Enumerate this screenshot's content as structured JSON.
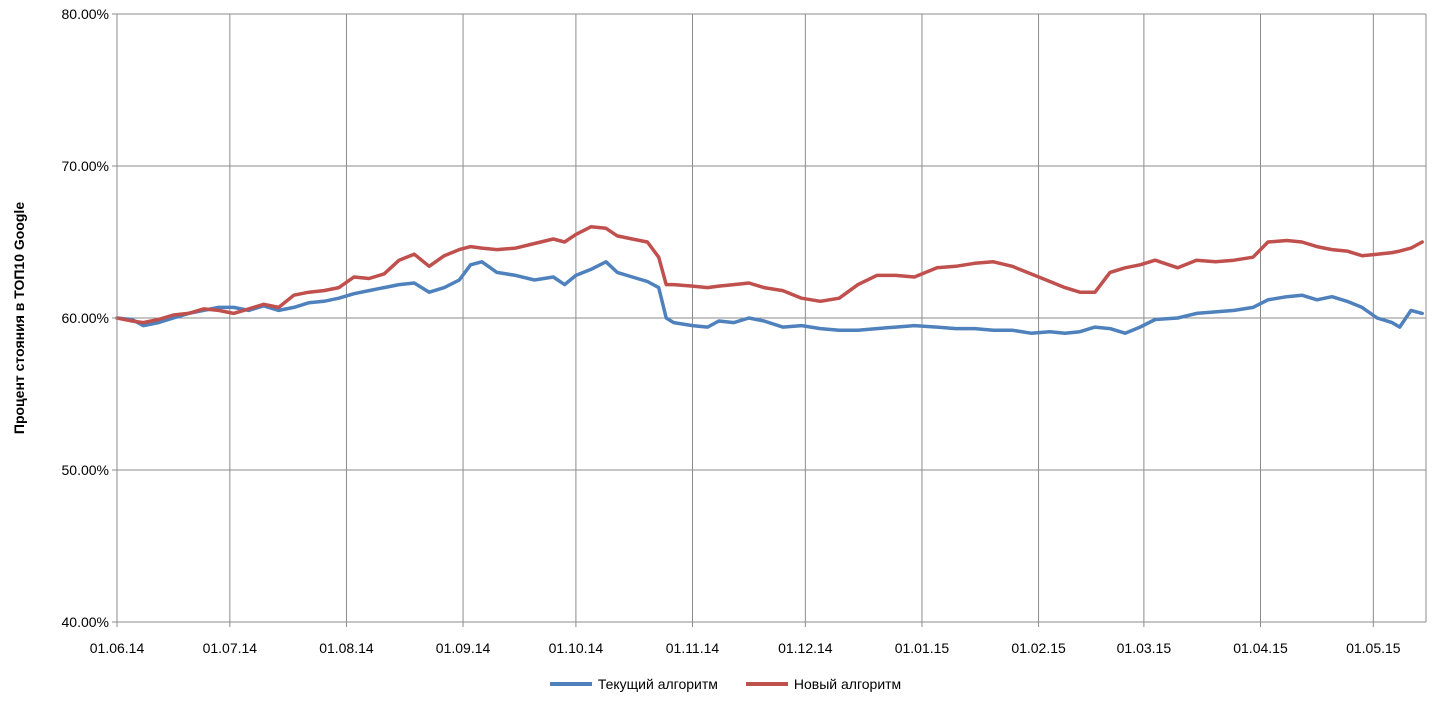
{
  "chart_data": {
    "type": "line",
    "title": "",
    "xlabel": "",
    "ylabel": "Процент стояния в ТОП10 Google",
    "ylim": [
      0.4,
      0.8
    ],
    "y_ticks": [
      "40.00%",
      "50.00%",
      "60.00%",
      "70.00%",
      "80.00%"
    ],
    "x_ticks": [
      "01.06.14",
      "01.07.14",
      "01.08.14",
      "01.09.14",
      "01.10.14",
      "01.11.14",
      "01.12.14",
      "01.01.15",
      "01.02.15",
      "01.03.15",
      "01.04.15",
      "01.05.15"
    ],
    "x_range": [
      "2014-06-01",
      "2015-05-15"
    ],
    "grid": true,
    "legend_position": "bottom",
    "series": [
      {
        "name": "Текущий алгоритм",
        "color": "#4f81bd",
        "points": [
          [
            "2014-06-01",
            0.6
          ],
          [
            "2014-06-05",
            0.599
          ],
          [
            "2014-06-08",
            0.595
          ],
          [
            "2014-06-12",
            0.597
          ],
          [
            "2014-06-16",
            0.6
          ],
          [
            "2014-06-20",
            0.603
          ],
          [
            "2014-06-24",
            0.605
          ],
          [
            "2014-06-28",
            0.607
          ],
          [
            "2014-07-02",
            0.607
          ],
          [
            "2014-07-06",
            0.605
          ],
          [
            "2014-07-10",
            0.608
          ],
          [
            "2014-07-14",
            0.605
          ],
          [
            "2014-07-18",
            0.607
          ],
          [
            "2014-07-22",
            0.61
          ],
          [
            "2014-07-26",
            0.611
          ],
          [
            "2014-07-30",
            0.613
          ],
          [
            "2014-08-03",
            0.616
          ],
          [
            "2014-08-07",
            0.618
          ],
          [
            "2014-08-11",
            0.62
          ],
          [
            "2014-08-15",
            0.622
          ],
          [
            "2014-08-19",
            0.623
          ],
          [
            "2014-08-23",
            0.617
          ],
          [
            "2014-08-27",
            0.62
          ],
          [
            "2014-08-31",
            0.625
          ],
          [
            "2014-09-03",
            0.635
          ],
          [
            "2014-09-06",
            0.637
          ],
          [
            "2014-09-10",
            0.63
          ],
          [
            "2014-09-15",
            0.628
          ],
          [
            "2014-09-20",
            0.625
          ],
          [
            "2014-09-25",
            0.627
          ],
          [
            "2014-09-28",
            0.622
          ],
          [
            "2014-10-01",
            0.628
          ],
          [
            "2014-10-05",
            0.632
          ],
          [
            "2014-10-09",
            0.637
          ],
          [
            "2014-10-12",
            0.63
          ],
          [
            "2014-10-16",
            0.627
          ],
          [
            "2014-10-20",
            0.624
          ],
          [
            "2014-10-23",
            0.62
          ],
          [
            "2014-10-25",
            0.6
          ],
          [
            "2014-10-27",
            0.597
          ],
          [
            "2014-11-01",
            0.595
          ],
          [
            "2014-11-05",
            0.594
          ],
          [
            "2014-11-08",
            0.598
          ],
          [
            "2014-11-12",
            0.597
          ],
          [
            "2014-11-16",
            0.6
          ],
          [
            "2014-11-20",
            0.598
          ],
          [
            "2014-11-25",
            0.594
          ],
          [
            "2014-11-30",
            0.595
          ],
          [
            "2014-12-05",
            0.593
          ],
          [
            "2014-12-10",
            0.592
          ],
          [
            "2014-12-15",
            0.592
          ],
          [
            "2014-12-20",
            0.593
          ],
          [
            "2014-12-25",
            0.594
          ],
          [
            "2014-12-30",
            0.595
          ],
          [
            "2015-01-05",
            0.594
          ],
          [
            "2015-01-10",
            0.593
          ],
          [
            "2015-01-15",
            0.593
          ],
          [
            "2015-01-20",
            0.592
          ],
          [
            "2015-01-25",
            0.592
          ],
          [
            "2015-01-30",
            0.59
          ],
          [
            "2015-02-04",
            0.591
          ],
          [
            "2015-02-08",
            0.59
          ],
          [
            "2015-02-12",
            0.591
          ],
          [
            "2015-02-16",
            0.594
          ],
          [
            "2015-02-20",
            0.593
          ],
          [
            "2015-02-24",
            0.59
          ],
          [
            "2015-02-28",
            0.594
          ],
          [
            "2015-03-04",
            0.599
          ],
          [
            "2015-03-10",
            0.6
          ],
          [
            "2015-03-15",
            0.603
          ],
          [
            "2015-03-20",
            0.604
          ],
          [
            "2015-03-25",
            0.605
          ],
          [
            "2015-03-30",
            0.607
          ],
          [
            "2015-04-03",
            0.612
          ],
          [
            "2015-04-08",
            0.614
          ],
          [
            "2015-04-12",
            0.615
          ],
          [
            "2015-04-16",
            0.612
          ],
          [
            "2015-04-20",
            0.614
          ],
          [
            "2015-04-24",
            0.611
          ],
          [
            "2015-04-28",
            0.607
          ],
          [
            "2015-05-02",
            0.6
          ],
          [
            "2015-05-06",
            0.597
          ],
          [
            "2015-05-08",
            0.594
          ],
          [
            "2015-05-11",
            0.605
          ],
          [
            "2015-05-14",
            0.603
          ]
        ]
      },
      {
        "name": "Новый алгоритм",
        "color": "#c0504d",
        "points": [
          [
            "2014-06-01",
            0.6
          ],
          [
            "2014-06-05",
            0.598
          ],
          [
            "2014-06-08",
            0.597
          ],
          [
            "2014-06-12",
            0.599
          ],
          [
            "2014-06-16",
            0.602
          ],
          [
            "2014-06-20",
            0.603
          ],
          [
            "2014-06-24",
            0.606
          ],
          [
            "2014-06-28",
            0.605
          ],
          [
            "2014-07-02",
            0.603
          ],
          [
            "2014-07-06",
            0.606
          ],
          [
            "2014-07-10",
            0.609
          ],
          [
            "2014-07-14",
            0.607
          ],
          [
            "2014-07-18",
            0.615
          ],
          [
            "2014-07-22",
            0.617
          ],
          [
            "2014-07-26",
            0.618
          ],
          [
            "2014-07-30",
            0.62
          ],
          [
            "2014-08-03",
            0.627
          ],
          [
            "2014-08-07",
            0.626
          ],
          [
            "2014-08-11",
            0.629
          ],
          [
            "2014-08-15",
            0.638
          ],
          [
            "2014-08-19",
            0.642
          ],
          [
            "2014-08-23",
            0.634
          ],
          [
            "2014-08-27",
            0.641
          ],
          [
            "2014-08-31",
            0.645
          ],
          [
            "2014-09-03",
            0.647
          ],
          [
            "2014-09-06",
            0.646
          ],
          [
            "2014-09-10",
            0.645
          ],
          [
            "2014-09-15",
            0.646
          ],
          [
            "2014-09-20",
            0.649
          ],
          [
            "2014-09-25",
            0.652
          ],
          [
            "2014-09-28",
            0.65
          ],
          [
            "2014-10-01",
            0.655
          ],
          [
            "2014-10-05",
            0.66
          ],
          [
            "2014-10-09",
            0.659
          ],
          [
            "2014-10-12",
            0.654
          ],
          [
            "2014-10-16",
            0.652
          ],
          [
            "2014-10-20",
            0.65
          ],
          [
            "2014-10-23",
            0.64
          ],
          [
            "2014-10-25",
            0.622
          ],
          [
            "2014-10-27",
            0.622
          ],
          [
            "2014-11-01",
            0.621
          ],
          [
            "2014-11-05",
            0.62
          ],
          [
            "2014-11-08",
            0.621
          ],
          [
            "2014-11-12",
            0.622
          ],
          [
            "2014-11-16",
            0.623
          ],
          [
            "2014-11-20",
            0.62
          ],
          [
            "2014-11-25",
            0.618
          ],
          [
            "2014-11-30",
            0.613
          ],
          [
            "2014-12-05",
            0.611
          ],
          [
            "2014-12-10",
            0.613
          ],
          [
            "2014-12-15",
            0.622
          ],
          [
            "2014-12-20",
            0.628
          ],
          [
            "2014-12-25",
            0.628
          ],
          [
            "2014-12-30",
            0.627
          ],
          [
            "2015-01-05",
            0.633
          ],
          [
            "2015-01-10",
            0.634
          ],
          [
            "2015-01-15",
            0.636
          ],
          [
            "2015-01-20",
            0.637
          ],
          [
            "2015-01-25",
            0.634
          ],
          [
            "2015-01-30",
            0.629
          ],
          [
            "2015-02-04",
            0.624
          ],
          [
            "2015-02-08",
            0.62
          ],
          [
            "2015-02-12",
            0.617
          ],
          [
            "2015-02-16",
            0.617
          ],
          [
            "2015-02-20",
            0.63
          ],
          [
            "2015-02-24",
            0.633
          ],
          [
            "2015-02-28",
            0.635
          ],
          [
            "2015-03-04",
            0.638
          ],
          [
            "2015-03-10",
            0.633
          ],
          [
            "2015-03-15",
            0.638
          ],
          [
            "2015-03-20",
            0.637
          ],
          [
            "2015-03-25",
            0.638
          ],
          [
            "2015-03-30",
            0.64
          ],
          [
            "2015-04-03",
            0.65
          ],
          [
            "2015-04-08",
            0.651
          ],
          [
            "2015-04-12",
            0.65
          ],
          [
            "2015-04-16",
            0.647
          ],
          [
            "2015-04-20",
            0.645
          ],
          [
            "2015-04-24",
            0.644
          ],
          [
            "2015-04-28",
            0.641
          ],
          [
            "2015-05-02",
            0.642
          ],
          [
            "2015-05-06",
            0.643
          ],
          [
            "2015-05-08",
            0.644
          ],
          [
            "2015-05-11",
            0.646
          ],
          [
            "2015-05-14",
            0.65
          ]
        ]
      }
    ]
  }
}
